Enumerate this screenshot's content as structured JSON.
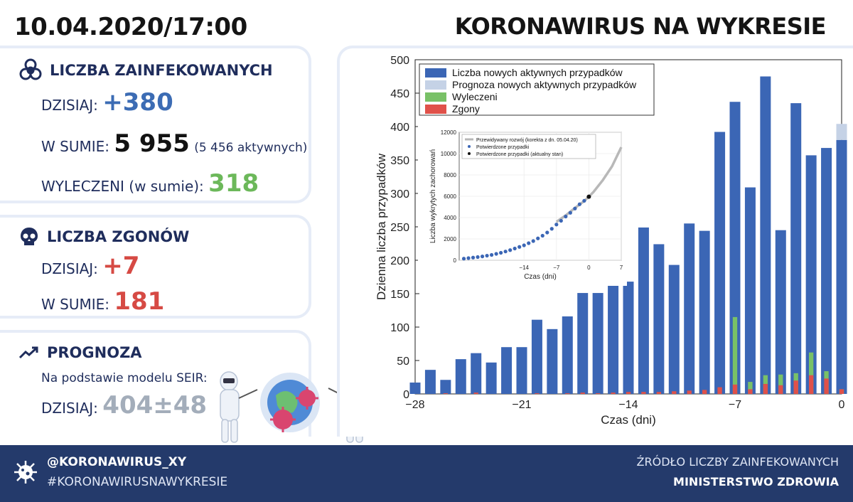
{
  "header": {
    "date": "10.04.2020/17:00",
    "title": "KORONAWIRUS NA WYKRESIE"
  },
  "infected": {
    "heading": "LICZBA ZAINFEKOWANYCH",
    "today_label": "DZISIAJ:",
    "today_value": "+380",
    "total_label": "W SUMIE:",
    "total_value": "5 955",
    "active_note": "(5 456 aktywnych)",
    "recovered_label": "WYLECZENI (w sumie):",
    "recovered_value": "318",
    "icon": "biohazard-icon"
  },
  "deaths": {
    "heading": "LICZBA ZGONÓW",
    "today_label": "DZISIAJ:",
    "today_value": "+7",
    "total_label": "W SUMIE:",
    "total_value": "181",
    "icon": "skull-icon"
  },
  "forecast": {
    "heading": "PROGNOZA",
    "model_note": "Na podstawie modelu SEIR:",
    "today_label": "DZISIAJ:",
    "today_value": "404±48",
    "icon": "trend-up-icon"
  },
  "footer": {
    "handle": "@KORONAWIRUS_XY",
    "hashtag": "#KORONAWIRUSNAWYKRESIE",
    "source_label": "ŹRÓDŁO LICZBY ZAINFEKOWANYCH",
    "source": "MINISTERSTWO ZDROWIA"
  },
  "colors": {
    "active": "#3b66b5",
    "forecast": "#c5d2e6",
    "recovered": "#79c167",
    "deaths": "#e0514a",
    "navy": "#243a6b"
  },
  "chart_data": [
    {
      "type": "bar",
      "xlabel": "Czas (dni)",
      "ylabel": "Dzienna liczba przypadków",
      "xlim": [
        -28,
        0
      ],
      "ylim": [
        0,
        500
      ],
      "xticks": [
        -28,
        -21,
        -14,
        -7,
        0
      ],
      "yticks": [
        0,
        50,
        100,
        150,
        200,
        250,
        300,
        350,
        400,
        450,
        500
      ],
      "legend_position": "top-left",
      "x": [
        -28,
        -27,
        -26,
        -25,
        -24,
        -23,
        -22,
        -21,
        -20,
        -19,
        -18,
        -17,
        -16,
        -15,
        -14,
        -13,
        -12,
        -11,
        -10,
        -9,
        -8,
        -7,
        -6,
        -5,
        -4,
        -3,
        -2,
        -1,
        0
      ],
      "series": [
        {
          "name": "Liczba nowych aktywnych przypadków",
          "values": [
            17,
            36,
            21,
            52,
            61,
            47,
            70,
            70,
            111,
            97,
            116,
            151,
            151,
            170,
            168,
            249,
            224,
            193,
            255,
            244,
            392,
            437,
            0,
            475,
            245,
            435,
            357,
            368,
            380
          ]
        },
        {
          "name": "Prognoza nowych aktywnych przypadków",
          "values": [
            0,
            0,
            0,
            0,
            0,
            0,
            0,
            0,
            0,
            0,
            0,
            0,
            0,
            0,
            0,
            0,
            0,
            0,
            0,
            0,
            0,
            0,
            0,
            0,
            0,
            0,
            0,
            0,
            24
          ]
        },
        {
          "name": "Wyleczeni",
          "values": [
            0,
            0,
            0,
            0,
            0,
            0,
            0,
            0,
            0,
            0,
            0,
            0,
            0,
            0,
            0,
            0,
            0,
            0,
            0,
            0,
            0,
            115,
            18,
            28,
            29,
            31,
            62,
            34,
            7
          ]
        },
        {
          "name": "Zgony",
          "values": [
            0,
            0,
            1,
            0,
            2,
            0,
            0,
            0,
            1,
            0,
            1,
            2,
            1,
            2,
            3,
            3,
            3,
            4,
            5,
            6,
            10,
            14,
            7,
            15,
            13,
            20,
            28,
            23,
            7
          ]
        }
      ],
      "extra_bar": {
        "x": -6,
        "value": 309
      }
    },
    {
      "type": "line",
      "xlabel": "Czas (dni)",
      "ylabel": "Liczba wykrytych zachorowań",
      "xlim": [
        -28,
        7
      ],
      "ylim": [
        0,
        12000
      ],
      "xticks": [
        -14,
        -7,
        0,
        7
      ],
      "yticks": [
        0,
        2000,
        4000,
        6000,
        8000,
        10000,
        12000
      ],
      "legend": [
        "Przewidywany rozwój (korekta z dn. 05.04.20)",
        "Potwierdzone przypadki",
        "Potwierdzone przypadki (aktualny stan)"
      ],
      "prediction_x": [
        -7,
        -5,
        -3,
        -1,
        0,
        1,
        3,
        5,
        7
      ],
      "prediction_y": [
        3600,
        4200,
        4900,
        5550,
        5955,
        6400,
        7500,
        8800,
        10600
      ],
      "confirmed_x": [
        -27,
        -26,
        -25,
        -24,
        -23,
        -22,
        -21,
        -20,
        -19,
        -18,
        -17,
        -16,
        -15,
        -14,
        -13,
        -12,
        -11,
        -10,
        -9,
        -8,
        -7,
        -6,
        -5,
        -4,
        -3,
        -2,
        -1
      ],
      "confirmed_y": [
        150,
        200,
        250,
        300,
        360,
        430,
        500,
        600,
        700,
        820,
        950,
        1100,
        1250,
        1400,
        1600,
        1800,
        2050,
        2300,
        2600,
        2950,
        3350,
        3700,
        4100,
        4450,
        4850,
        5250,
        5575
      ],
      "current": {
        "x": 0,
        "y": 5955
      }
    }
  ]
}
